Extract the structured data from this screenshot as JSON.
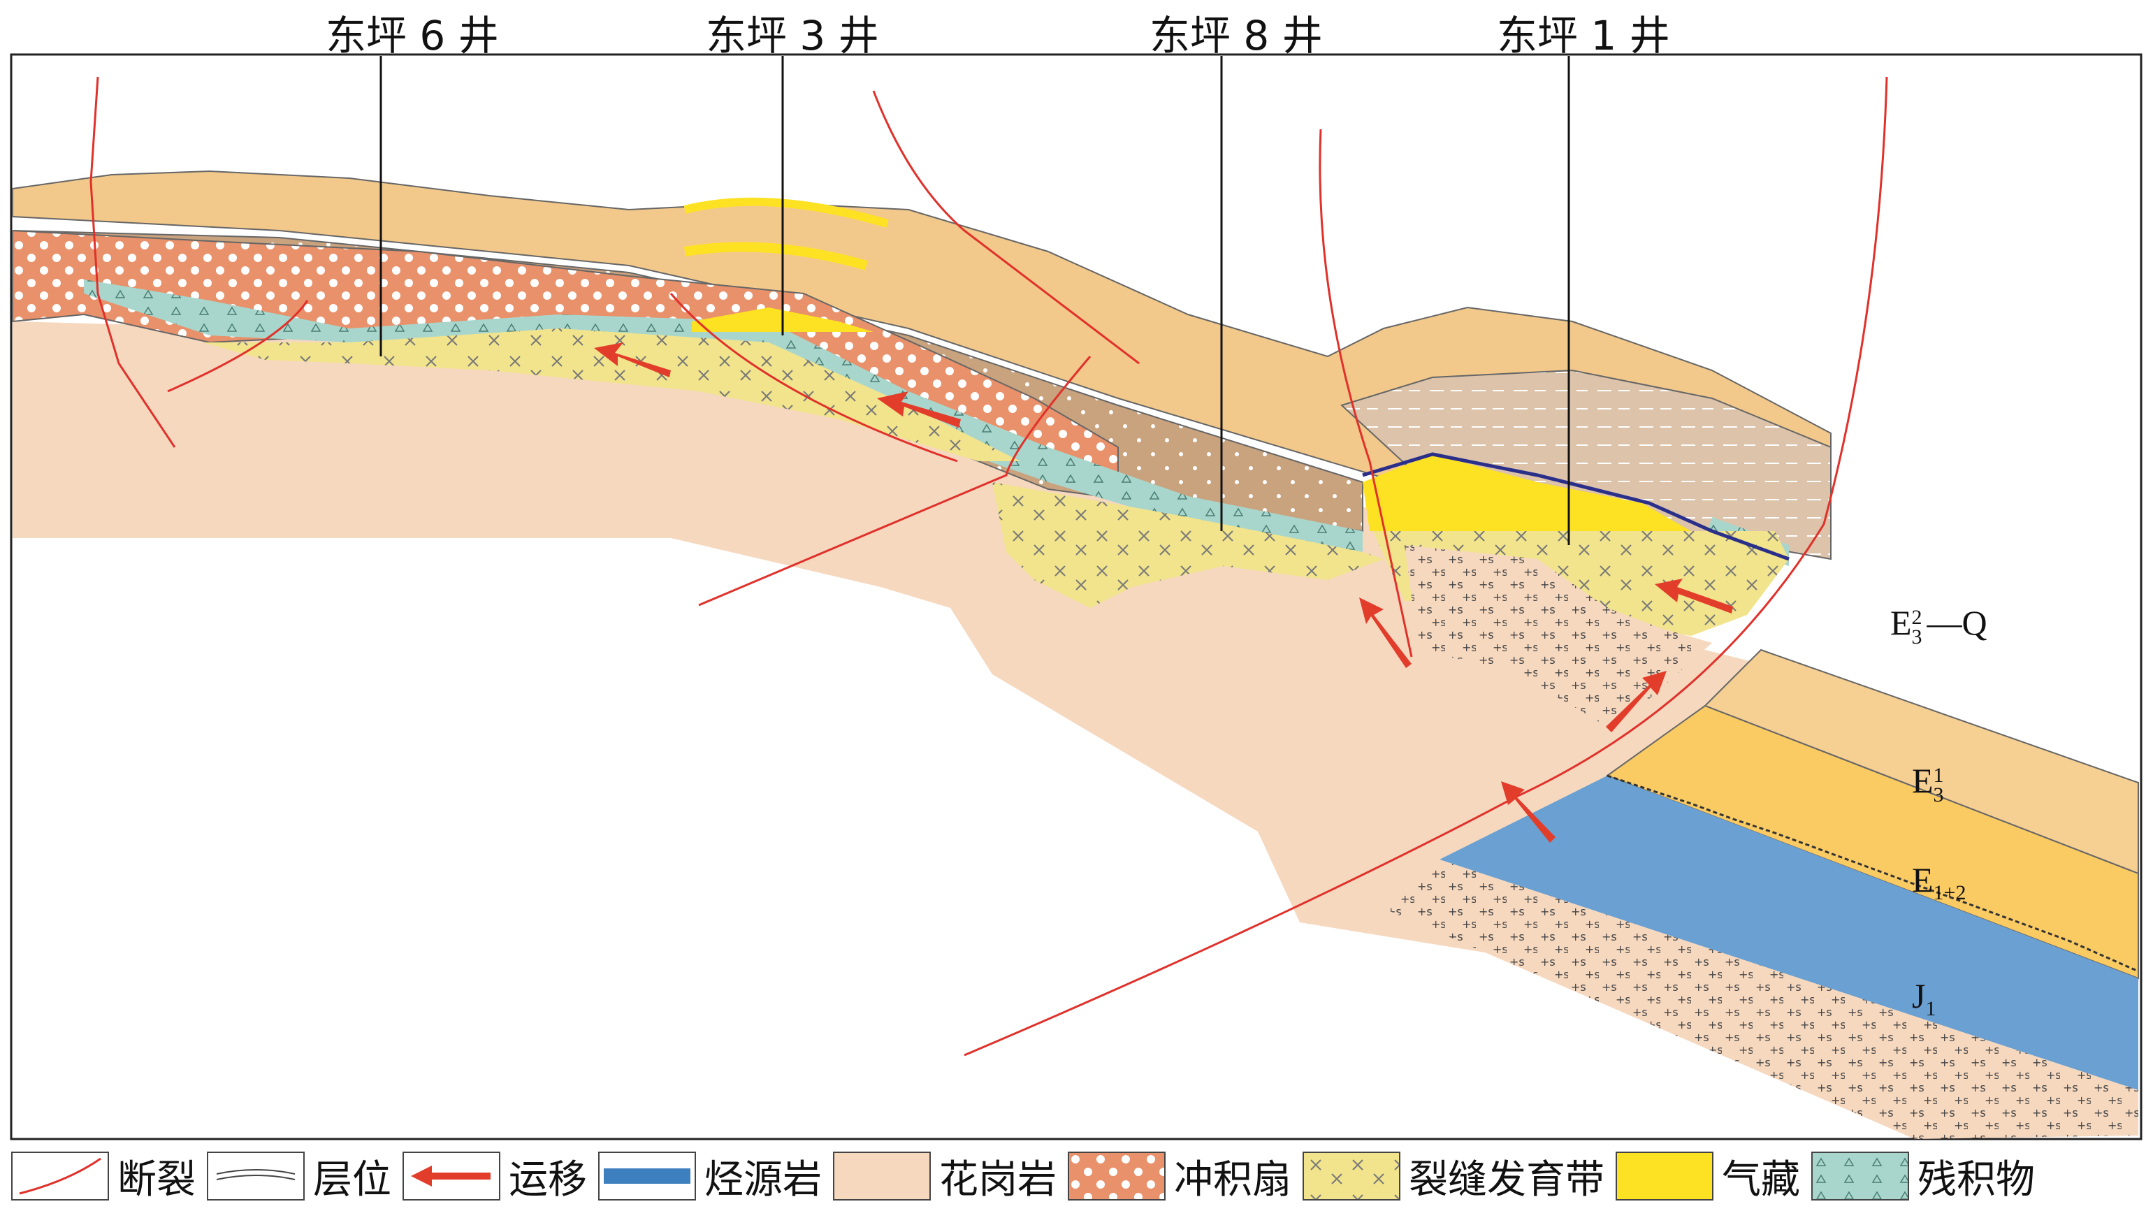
{
  "wells": [
    {
      "name": "东坪 6 井"
    },
    {
      "name": "东坪 3 井"
    },
    {
      "name": "东坪 8 井"
    },
    {
      "name": "东坪 1 井"
    }
  ],
  "strata": {
    "e3q": {
      "base": "E",
      "sup": "2",
      "sub": "3",
      "tail": "—Q"
    },
    "e31": {
      "base": "E",
      "sup": "1",
      "sub": "3"
    },
    "e12": {
      "base": "E",
      "sub": "1+2"
    },
    "j1": {
      "base": "J",
      "sub": "1"
    }
  },
  "legend": [
    {
      "key": "fault",
      "label": "断裂"
    },
    {
      "key": "horizon",
      "label": "层位"
    },
    {
      "key": "migration",
      "label": "运移"
    },
    {
      "key": "source",
      "label": "烃源岩"
    },
    {
      "key": "granite",
      "label": "花岗岩"
    },
    {
      "key": "fan",
      "label": "冲积扇"
    },
    {
      "key": "fracture",
      "label": "裂缝发育带"
    },
    {
      "key": "gas",
      "label": "气藏"
    },
    {
      "key": "residual",
      "label": "残积物"
    }
  ],
  "colors": {
    "granite": "#f6d8bf",
    "fan": "#e8916a",
    "fan_dots": "#ffffff",
    "mudstone": "#c9a27e",
    "upper_layer": "#f3c98b",
    "e31": "#f6cf92",
    "e12": "#fbcb63",
    "source": "#6aa0d2",
    "fracture": "#f2e48c",
    "gas": "#fde224",
    "residual": "#a9d6cc",
    "fault": "#e0312b",
    "arrow": "#e23d2b",
    "source_line": "#2a2f8a"
  }
}
